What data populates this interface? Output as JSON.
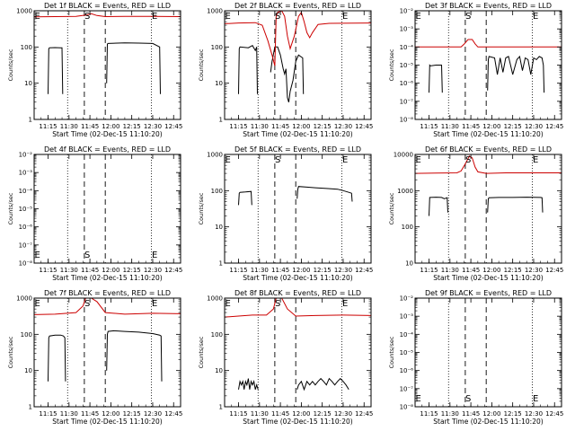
{
  "colors": {
    "events": "#000000",
    "lld": "#cc0000",
    "frame": "#000000",
    "background": "#ffffff"
  },
  "shared": {
    "x_axis_label": "Start Time (02-Dec-15 11:10:20)",
    "y_axis_label": "Counts/sec",
    "time_ticks": [
      "11:15",
      "11:30",
      "11:45",
      "12:00",
      "12:15",
      "12:30",
      "12:45"
    ],
    "time_ticks_min": [
      15,
      30,
      45,
      60,
      75,
      90,
      105
    ],
    "x_range_min": [
      5,
      110
    ],
    "eclipse_end_min": [
      29,
      89
    ],
    "saa_window_min": [
      41,
      56
    ],
    "marker_labels": {
      "eclipse": "E",
      "saa": "S"
    }
  },
  "chart_data": [
    {
      "type": "line",
      "title": "Det 1f BLACK = Events, RED = LLD",
      "ylim": [
        1,
        1000
      ],
      "y_ticks": [
        "1",
        "10",
        "100",
        "1000"
      ],
      "markers": [
        {
          "label": "E",
          "t": 6
        },
        {
          "label": "S",
          "t": 43
        },
        {
          "label": "E",
          "t": 90
        }
      ],
      "series": [
        {
          "name": "Events",
          "color": "#000000",
          "segments": [
            {
              "t": [
                15,
                15.5,
                16,
                20,
                24,
                25,
                25.5
              ],
              "y": [
                5,
                90,
                95,
                96,
                95,
                95,
                5
              ]
            },
            {
              "t": [
                57,
                57.5,
                58,
                70,
                80,
                90,
                95,
                95.5
              ],
              "y": [
                10,
                120,
                125,
                130,
                128,
                125,
                100,
                5
              ]
            }
          ]
        },
        {
          "name": "LLD",
          "color": "#cc0000",
          "segments": [
            {
              "t": [
                5,
                20,
                35,
                42,
                46,
                50,
                56,
                70,
                90,
                110
              ],
              "y": [
                680,
                690,
                700,
                760,
                830,
                740,
                690,
                700,
                700,
                690
              ]
            }
          ]
        }
      ]
    },
    {
      "type": "line",
      "title": "Det 2f BLACK = Events, RED = LLD",
      "ylim": [
        1,
        1000
      ],
      "y_ticks": [
        "1",
        "10",
        "100",
        "1000"
      ],
      "markers": [
        {
          "label": "E",
          "t": 6
        },
        {
          "label": "S",
          "t": 43
        },
        {
          "label": "E",
          "t": 90
        }
      ],
      "series": [
        {
          "name": "Events",
          "color": "#000000",
          "segments": [
            {
              "t": [
                15,
                15.5,
                16,
                22,
                25,
                27,
                28,
                28.5
              ],
              "y": [
                5,
                90,
                100,
                95,
                110,
                80,
                100,
                5
              ]
            },
            {
              "t": [
                38,
                39,
                41,
                43,
                45,
                47,
                48,
                49,
                50,
                51,
                52,
                54,
                56,
                58,
                61,
                61.5
              ],
              "y": [
                20,
                40,
                100,
                100,
                60,
                25,
                18,
                25,
                4,
                3,
                6,
                12,
                40,
                60,
                50,
                5
              ]
            }
          ]
        },
        {
          "name": "LLD",
          "color": "#cc0000",
          "segments": [
            {
              "t": [
                5,
                15,
                27,
                32,
                36,
                39,
                41,
                42,
                43,
                46,
                48,
                50,
                52,
                55,
                58,
                60,
                62,
                64,
                66,
                68,
                72,
                80,
                110
              ],
              "y": [
                440,
                460,
                470,
                400,
                150,
                60,
                30,
                700,
                900,
                1000,
                700,
                200,
                90,
                200,
                700,
                900,
                500,
                250,
                180,
                250,
                420,
                450,
                460
              ]
            }
          ]
        }
      ]
    },
    {
      "type": "line",
      "title": "Det 3f BLACK = Events, RED = LLD",
      "ylim": [
        1e-08,
        0.01
      ],
      "y_ticks": [
        "10⁻⁸",
        "10⁻⁷",
        "10⁻⁶",
        "10⁻⁵",
        "10⁻⁴",
        "10⁻³",
        "10⁻²"
      ],
      "markers": [
        {
          "label": "E",
          "t": 6
        },
        {
          "label": "S",
          "t": 43
        },
        {
          "label": "E",
          "t": 90
        }
      ],
      "series": [
        {
          "name": "Events",
          "color": "#000000",
          "segments": [
            {
              "t": [
                15,
                15.5,
                16,
                20,
                22,
                24,
                24.5
              ],
              "y": [
                3e-07,
                1e-05,
                9e-06,
                1e-05,
                1e-05,
                1e-05,
                3e-07
              ]
            },
            {
              "t": [
                57,
                57.5,
                58,
                62,
                64,
                66,
                68,
                70,
                72,
                75,
                78,
                80,
                82,
                84,
                86,
                88,
                90,
                92,
                94,
                96,
                97,
                97.5
              ],
              "y": [
                4e-07,
                2e-05,
                3e-05,
                2.5e-05,
                3e-06,
                2.5e-05,
                4e-06,
                2.5e-05,
                3e-05,
                3e-06,
                2e-05,
                3e-05,
                5e-06,
                2.5e-05,
                2e-05,
                3e-06,
                2.5e-05,
                2e-05,
                3e-05,
                2.5e-05,
                1e-05,
                3e-07
              ]
            }
          ]
        },
        {
          "name": "LLD",
          "color": "#cc0000",
          "segments": [
            {
              "t": [
                5,
                38,
                40,
                43,
                46,
                48,
                50,
                110
              ],
              "y": [
                0.0001,
                0.0001,
                0.00014,
                0.00026,
                0.00026,
                0.00015,
                0.0001,
                0.0001
              ]
            }
          ]
        }
      ]
    },
    {
      "type": "line",
      "title": "Det 4f BLACK = Events, RED = LLD",
      "ylim": [
        1e-08,
        0.01
      ],
      "y_ticks": [
        "10⁻⁸",
        "10⁻⁷",
        "10⁻⁶",
        "10⁻⁵",
        "10⁻⁴",
        "10⁻³",
        "10⁻²"
      ],
      "markers": [
        {
          "label": "E",
          "t": 6
        },
        {
          "label": "S",
          "t": 43
        },
        {
          "label": "E",
          "t": 90
        }
      ],
      "series": []
    },
    {
      "type": "line",
      "title": "Det 5f BLACK = Events, RED = LLD",
      "ylim": [
        1,
        1000
      ],
      "y_ticks": [
        "1",
        "10",
        "100",
        "1000"
      ],
      "markers": [
        {
          "label": "E",
          "t": 6
        },
        {
          "label": "S",
          "t": 43
        },
        {
          "label": "E",
          "t": 90
        }
      ],
      "series": [
        {
          "name": "Events",
          "color": "#000000",
          "segments": [
            {
              "t": [
                15,
                15.5,
                16,
                20,
                24,
                24.5
              ],
              "y": [
                40,
                85,
                90,
                92,
                95,
                40
              ]
            },
            {
              "t": [
                57,
                57.5,
                58,
                64,
                70,
                78,
                86,
                90,
                94,
                96,
                96.5
              ],
              "y": [
                60,
                110,
                130,
                125,
                120,
                115,
                110,
                100,
                90,
                85,
                50
              ]
            }
          ]
        }
      ]
    },
    {
      "type": "line",
      "title": "Det 6f BLACK = Events, RED = LLD",
      "ylim": [
        10,
        10000
      ],
      "y_ticks": [
        "10",
        "100",
        "1000",
        "10000"
      ],
      "markers": [
        {
          "label": "E",
          "t": 6
        },
        {
          "label": "S",
          "t": 43
        },
        {
          "label": "E",
          "t": 90
        }
      ],
      "series": [
        {
          "name": "Events",
          "color": "#000000",
          "segments": [
            {
              "t": [
                15,
                15.5,
                16,
                20,
                24,
                26,
                28,
                28.5
              ],
              "y": [
                200,
                650,
                650,
                660,
                650,
                600,
                640,
                250
              ]
            },
            {
              "t": [
                57,
                57.5,
                58,
                65,
                75,
                85,
                95,
                96,
                96.5
              ],
              "y": [
                250,
                600,
                640,
                650,
                650,
                660,
                650,
                640,
                250
              ]
            }
          ]
        },
        {
          "name": "LLD",
          "color": "#cc0000",
          "segments": [
            {
              "t": [
                5,
                20,
                35,
                38,
                41,
                44,
                46,
                48,
                50,
                56,
                70,
                90,
                110
              ],
              "y": [
                3000,
                3050,
                3100,
                3500,
                5500,
                9000,
                8000,
                4500,
                3300,
                3000,
                3100,
                3100,
                3100
              ]
            }
          ]
        }
      ]
    },
    {
      "type": "line",
      "title": "Det 7f BLACK = Events, RED = LLD",
      "ylim": [
        1,
        1000
      ],
      "y_ticks": [
        "1",
        "10",
        "100",
        "1000"
      ],
      "markers": [
        {
          "label": "E",
          "t": 6
        },
        {
          "label": "S",
          "t": 43
        },
        {
          "label": "E",
          "t": 90
        }
      ],
      "series": [
        {
          "name": "Events",
          "color": "#000000",
          "segments": [
            {
              "t": [
                15,
                15.5,
                16,
                20,
                24,
                26,
                27,
                27.5
              ],
              "y": [
                5,
                80,
                90,
                95,
                95,
                90,
                80,
                5
              ]
            },
            {
              "t": [
                57,
                57.5,
                58,
                62,
                70,
                80,
                90,
                95,
                96,
                96.5
              ],
              "y": [
                10,
                100,
                120,
                125,
                120,
                115,
                105,
                95,
                90,
                5
              ]
            }
          ]
        },
        {
          "name": "LLD",
          "color": "#cc0000",
          "segments": [
            {
              "t": [
                5,
                20,
                35,
                40,
                42,
                44,
                46,
                50,
                56,
                70,
                90,
                110
              ],
              "y": [
                350,
                360,
                400,
                600,
                1000,
                1000,
                1000,
                800,
                400,
                360,
                380,
                370
              ]
            }
          ]
        }
      ]
    },
    {
      "type": "line",
      "title": "Det 8f BLACK = Events, RED = LLD",
      "ylim": [
        1,
        1000
      ],
      "y_ticks": [
        "1",
        "10",
        "100",
        "1000"
      ],
      "markers": [
        {
          "label": "E",
          "t": 6
        },
        {
          "label": "S",
          "t": 43
        },
        {
          "label": "E",
          "t": 90
        }
      ],
      "series": [
        {
          "name": "Events",
          "color": "#000000",
          "segments": [
            {
              "t": [
                15,
                16,
                17,
                18,
                19,
                20,
                21,
                22,
                23,
                24,
                25,
                26,
                27,
                28,
                29
              ],
              "y": [
                3,
                5,
                4,
                5,
                3,
                5,
                4,
                6,
                3,
                5,
                4,
                5,
                3,
                4,
                3
              ]
            },
            {
              "t": [
                57,
                58,
                60,
                62,
                64,
                66,
                68,
                70,
                72,
                74,
                76,
                78,
                80,
                82,
                84,
                86,
                88,
                90,
                92,
                94
              ],
              "y": [
                3,
                4,
                5,
                3,
                5,
                4,
                5,
                4,
                5,
                6,
                5,
                4,
                6,
                5,
                4,
                5,
                6,
                5,
                4,
                3
              ]
            }
          ]
        },
        {
          "name": "LLD",
          "color": "#cc0000",
          "segments": [
            {
              "t": [
                5,
                15,
                25,
                35,
                40,
                42,
                44,
                46,
                50,
                56,
                70,
                90,
                110
              ],
              "y": [
                300,
                320,
                340,
                340,
                500,
                1000,
                1000,
                1000,
                500,
                320,
                330,
                340,
                330
              ]
            }
          ]
        }
      ]
    },
    {
      "type": "line",
      "title": "Det 9f BLACK = Events, RED = LLD",
      "ylim": [
        1e-08,
        0.01
      ],
      "y_ticks": [
        "10⁻⁸",
        "10⁻⁷",
        "10⁻⁶",
        "10⁻⁵",
        "10⁻⁴",
        "10⁻³",
        "10⁻²"
      ],
      "markers": [
        {
          "label": "E",
          "t": 6
        },
        {
          "label": "S",
          "t": 43
        },
        {
          "label": "E",
          "t": 90
        }
      ],
      "series": []
    }
  ]
}
